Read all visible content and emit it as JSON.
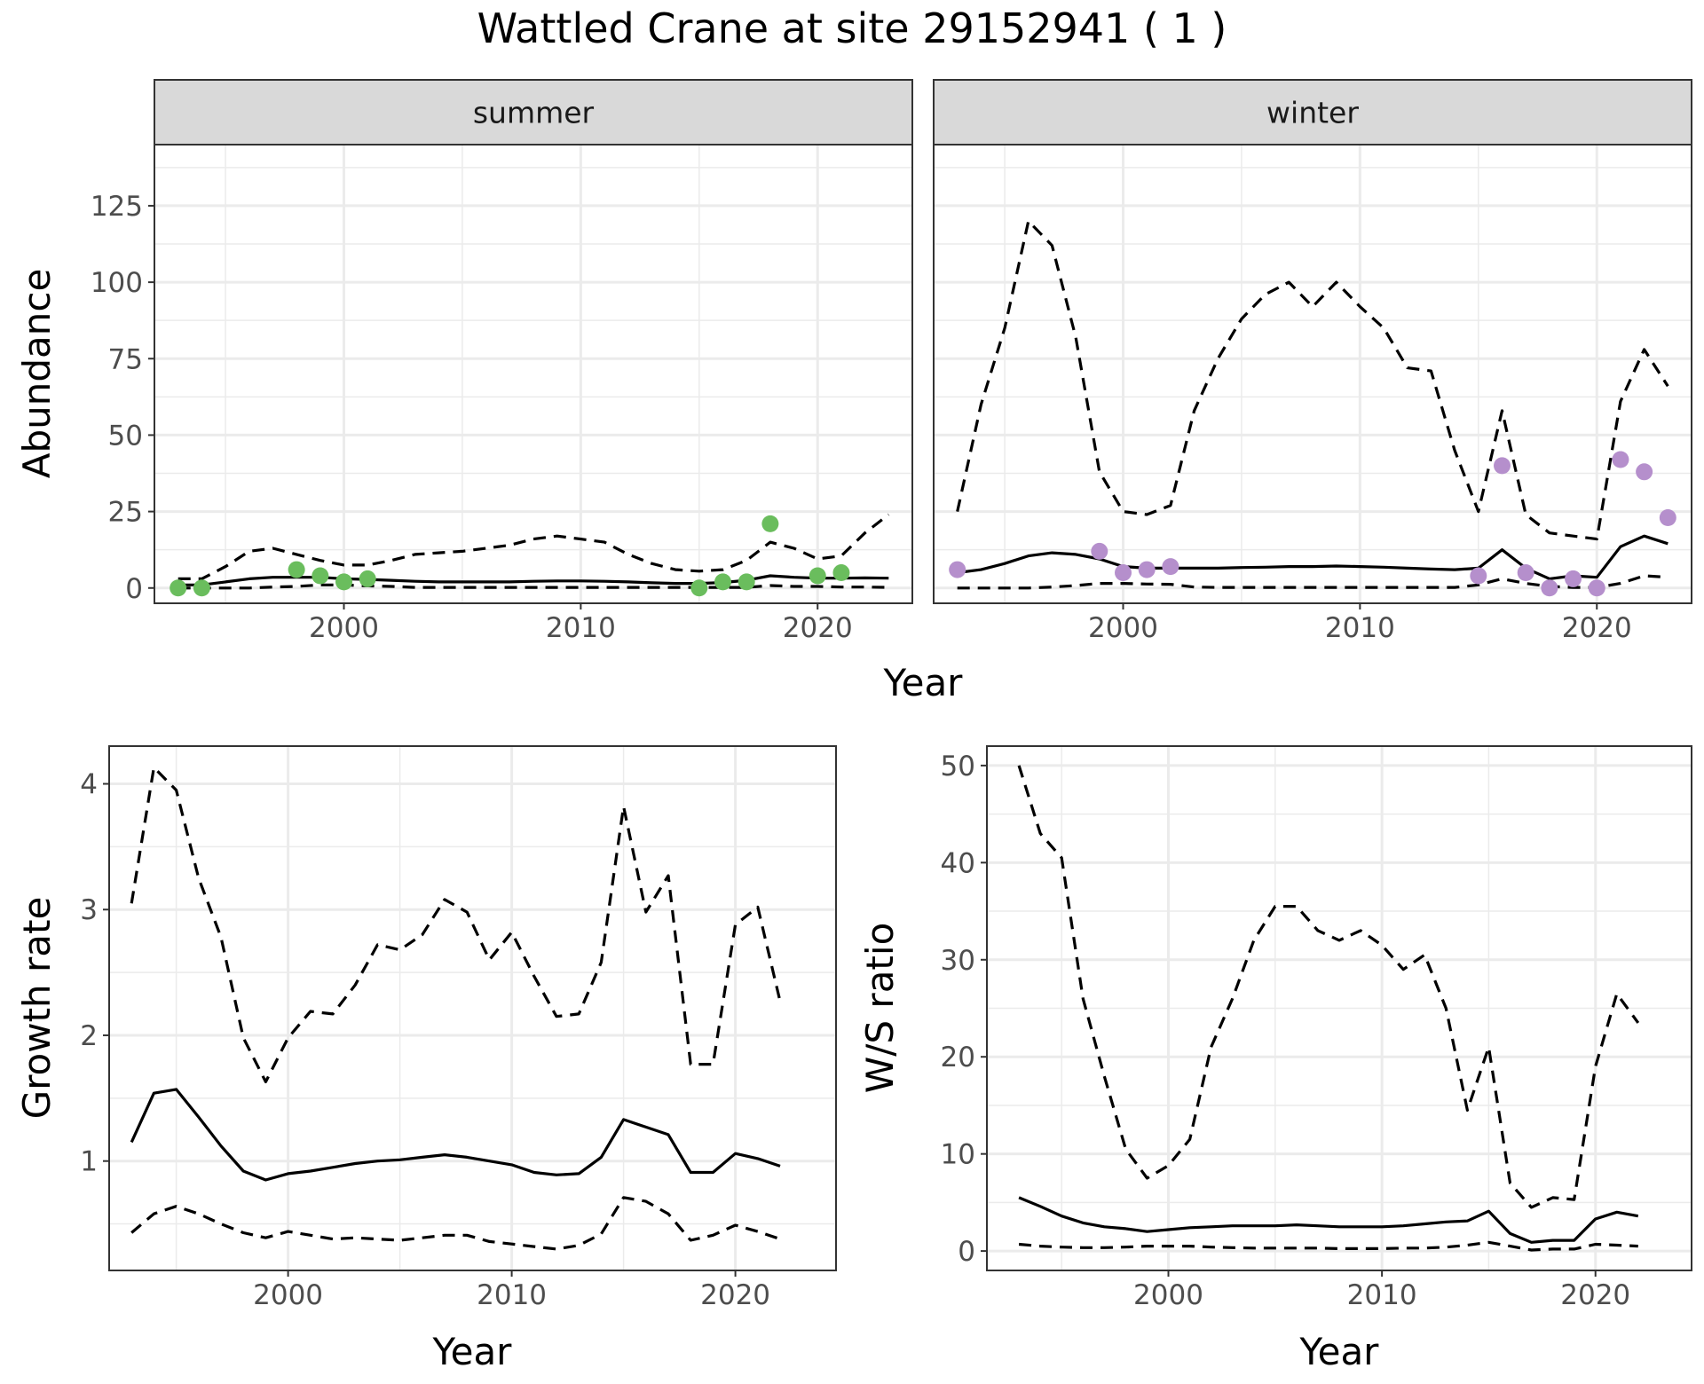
{
  "chart_title": "Wattled Crane at site 29152941 ( 1 )",
  "colors": {
    "summer_points": "#6abd5d",
    "winter_points": "#b58fcc",
    "lines": "#000000",
    "strip_bg": "#d9d9d9"
  },
  "chart_data": [
    {
      "id": "abundance",
      "type": "line",
      "ylabel": "Abundance",
      "xlabel": "Year",
      "xlim": [
        1992,
        2024
      ],
      "ylim": [
        -5,
        145
      ],
      "xticks": [
        2000,
        2010,
        2020
      ],
      "yticks": [
        0,
        25,
        50,
        75,
        100,
        125
      ],
      "x": [
        1993,
        1994,
        1995,
        1996,
        1997,
        1998,
        1999,
        2000,
        2001,
        2002,
        2003,
        2004,
        2005,
        2006,
        2007,
        2008,
        2009,
        2010,
        2011,
        2012,
        2013,
        2014,
        2015,
        2016,
        2017,
        2018,
        2019,
        2020,
        2021,
        2022,
        2023
      ],
      "facets": [
        {
          "label": "summer",
          "estimate": [
            1,
            1,
            2,
            3,
            3.5,
            3.5,
            3.5,
            3,
            2.8,
            2.5,
            2.2,
            2,
            2,
            2,
            2,
            2.2,
            2.3,
            2.3,
            2.2,
            2,
            1.7,
            1.5,
            1.5,
            1.8,
            2.5,
            4,
            3.5,
            3.2,
            3.2,
            3.3,
            3.2
          ],
          "upper": [
            3,
            3,
            7,
            12,
            13,
            11,
            9,
            7.5,
            7.5,
            9,
            11,
            11.5,
            12,
            13,
            14,
            16,
            17,
            16,
            15,
            11,
            8,
            6,
            5.5,
            6,
            9,
            15,
            13,
            9.5,
            10.5,
            18,
            24
          ],
          "lower": [
            0,
            0,
            0,
            0,
            0.3,
            0.5,
            1,
            1,
            0.7,
            0.5,
            0.2,
            0.2,
            0.2,
            0.2,
            0.2,
            0.2,
            0.2,
            0.2,
            0.2,
            0.2,
            0.2,
            0.2,
            0.2,
            0.2,
            0.2,
            0.8,
            0.5,
            0.5,
            0.3,
            0.3,
            0.2
          ],
          "points_x": [
            1993,
            1994,
            1998,
            1999,
            2000,
            2001,
            2015,
            2016,
            2017,
            2018,
            2020,
            2021
          ],
          "points_y": [
            0,
            0,
            6,
            4,
            2,
            3,
            0,
            2,
            2,
            21,
            4,
            5
          ]
        },
        {
          "label": "winter",
          "estimate": [
            5,
            6,
            8,
            10.5,
            11.5,
            11,
            9.5,
            7,
            6.5,
            6.5,
            6.5,
            6.5,
            6.7,
            6.8,
            7,
            7,
            7.2,
            7,
            6.8,
            6.5,
            6.2,
            6,
            6.5,
            12.5,
            6.5,
            3,
            4,
            3.5,
            13.5,
            17,
            14.5
          ],
          "upper": [
            25,
            60,
            85,
            120,
            112,
            82,
            38,
            25,
            24,
            27,
            58,
            75,
            88,
            96,
            100,
            92,
            100,
            92,
            85,
            72,
            71,
            45,
            25,
            58,
            24,
            18,
            17,
            16,
            61,
            78,
            66
          ],
          "lower": [
            0,
            0,
            0,
            0,
            0.3,
            0.8,
            1.5,
            1.5,
            1.3,
            1.2,
            0.3,
            0.2,
            0.2,
            0.2,
            0.2,
            0.2,
            0.2,
            0.2,
            0.2,
            0.2,
            0.2,
            0.2,
            1,
            3,
            1.5,
            0.5,
            0.2,
            0.2,
            1.5,
            4,
            3.5
          ],
          "points_x": [
            1993,
            1999,
            2000,
            2001,
            2002,
            2015,
            2016,
            2017,
            2018,
            2019,
            2020,
            2021,
            2022,
            2023
          ],
          "points_y": [
            6,
            12,
            5,
            6,
            7,
            4,
            40,
            5,
            0,
            3,
            0,
            42,
            38,
            23
          ]
        }
      ]
    },
    {
      "id": "growth",
      "type": "line",
      "ylabel": "Growth rate",
      "xlabel": "Year",
      "xlim": [
        1992,
        2024.5
      ],
      "ylim": [
        0.13,
        4.3
      ],
      "xticks": [
        2000,
        2010,
        2020
      ],
      "yticks": [
        1,
        2,
        3,
        4
      ],
      "x": [
        1993,
        1994,
        1995,
        1996,
        1997,
        1998,
        1999,
        2000,
        2001,
        2002,
        2003,
        2004,
        2005,
        2006,
        2007,
        2008,
        2009,
        2010,
        2011,
        2012,
        2013,
        2014,
        2015,
        2016,
        2017,
        2018,
        2019,
        2020,
        2021,
        2022
      ],
      "estimate": [
        1.15,
        1.54,
        1.57,
        1.35,
        1.12,
        0.92,
        0.85,
        0.9,
        0.92,
        0.95,
        0.98,
        1.0,
        1.01,
        1.03,
        1.05,
        1.03,
        1.0,
        0.97,
        0.91,
        0.89,
        0.9,
        1.03,
        1.33,
        1.27,
        1.21,
        0.91,
        0.91,
        1.06,
        1.02,
        0.96
      ],
      "upper": [
        3.05,
        4.13,
        3.95,
        3.25,
        2.78,
        1.98,
        1.63,
        1.98,
        2.19,
        2.17,
        2.4,
        2.72,
        2.68,
        2.8,
        3.08,
        2.98,
        2.6,
        2.82,
        2.47,
        2.15,
        2.17,
        2.58,
        3.82,
        2.98,
        3.27,
        1.77,
        1.77,
        2.88,
        3.02,
        2.27
      ],
      "lower": [
        0.43,
        0.58,
        0.64,
        0.58,
        0.5,
        0.43,
        0.39,
        0.44,
        0.41,
        0.38,
        0.39,
        0.38,
        0.37,
        0.39,
        0.41,
        0.41,
        0.36,
        0.34,
        0.32,
        0.3,
        0.33,
        0.42,
        0.71,
        0.68,
        0.58,
        0.37,
        0.41,
        0.49,
        0.44,
        0.38
      ]
    },
    {
      "id": "ratio",
      "type": "line",
      "ylabel": "W/S ratio",
      "xlabel": "Year",
      "xlim": [
        1991.5,
        2024.5
      ],
      "ylim": [
        -2,
        52
      ],
      "xticks": [
        2000,
        2010,
        2020
      ],
      "yticks": [
        0,
        10,
        20,
        30,
        40,
        50
      ],
      "x": [
        1993,
        1994,
        1995,
        1996,
        1997,
        1998,
        1999,
        2000,
        2001,
        2002,
        2003,
        2004,
        2005,
        2006,
        2007,
        2008,
        2009,
        2010,
        2011,
        2012,
        2013,
        2014,
        2015,
        2016,
        2017,
        2018,
        2019,
        2020,
        2021,
        2022
      ],
      "estimate": [
        5.5,
        4.6,
        3.6,
        2.9,
        2.5,
        2.3,
        2.0,
        2.2,
        2.4,
        2.5,
        2.6,
        2.6,
        2.6,
        2.7,
        2.6,
        2.5,
        2.5,
        2.5,
        2.6,
        2.8,
        3.0,
        3.1,
        4.1,
        1.8,
        0.9,
        1.1,
        1.1,
        3.3,
        4.0,
        3.6
      ],
      "upper": [
        50,
        43,
        40.5,
        26,
        18,
        10.5,
        7.5,
        8.8,
        11.5,
        21,
        26,
        32,
        35.5,
        35.5,
        33,
        32,
        33,
        31.5,
        29,
        30.5,
        25,
        14.5,
        21,
        7,
        4.5,
        5.5,
        5.3,
        19,
        26.5,
        23.5
      ],
      "lower": [
        0.7,
        0.5,
        0.4,
        0.35,
        0.35,
        0.4,
        0.5,
        0.5,
        0.5,
        0.4,
        0.35,
        0.3,
        0.3,
        0.3,
        0.3,
        0.25,
        0.25,
        0.25,
        0.3,
        0.3,
        0.4,
        0.6,
        0.9,
        0.5,
        0.1,
        0.2,
        0.2,
        0.7,
        0.6,
        0.5
      ]
    }
  ]
}
